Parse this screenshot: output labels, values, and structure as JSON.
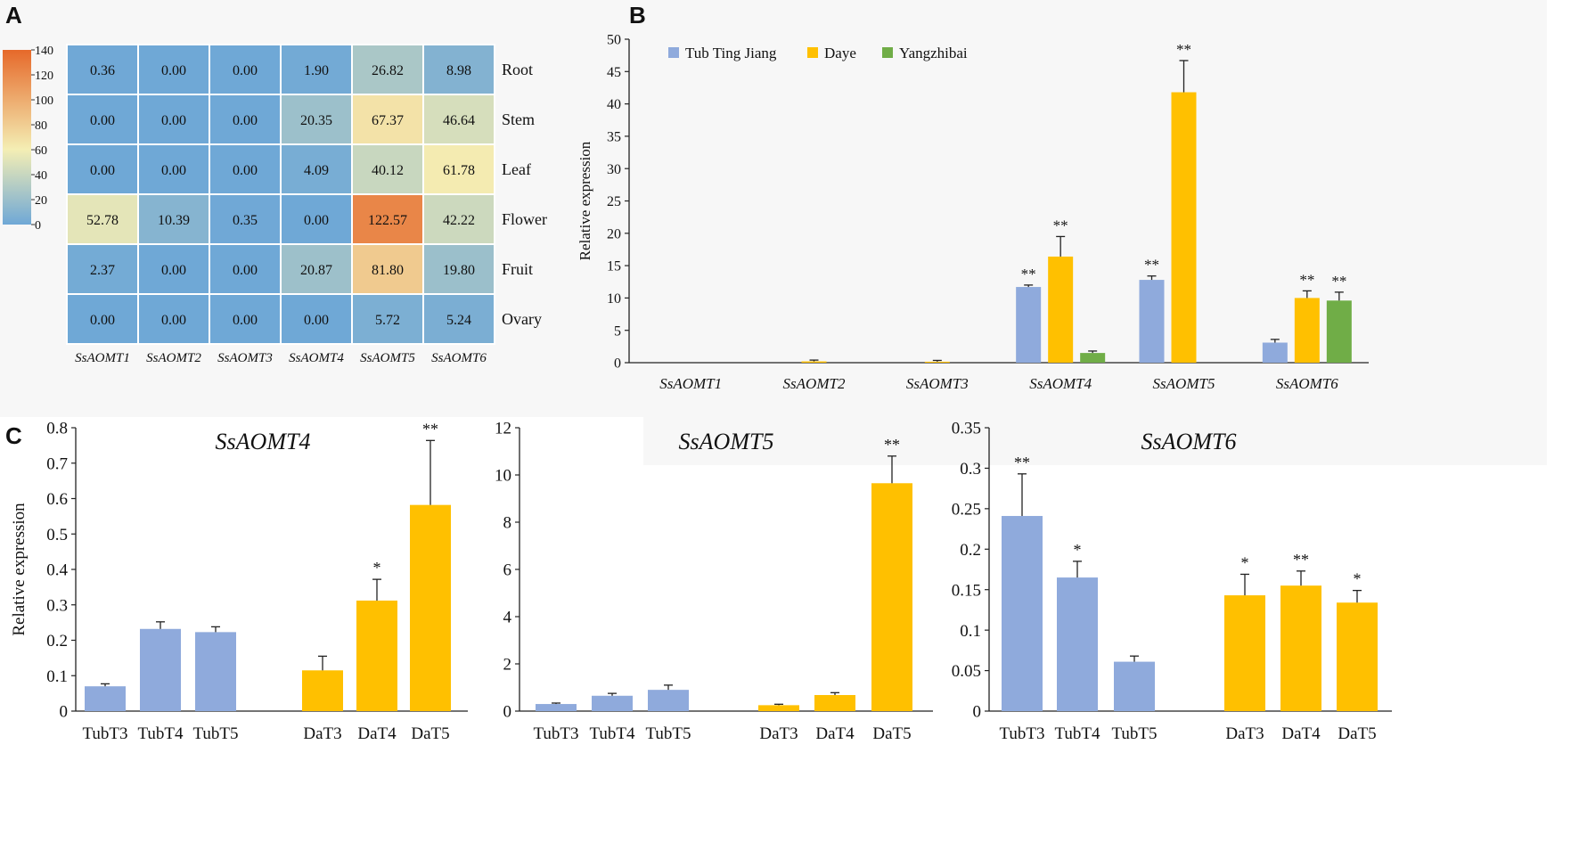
{
  "panel_labels": [
    "A",
    "B",
    "C"
  ],
  "colors": {
    "heat_low": "#6fa8d6",
    "heat_mid": "#f4eeb4",
    "heat_high": "#e6692a",
    "tub": "#8faadc",
    "daye": "#ffc000",
    "yangzhibai": "#70ad47"
  },
  "chart_data": [
    {
      "type": "heatmap",
      "title": "",
      "rows": [
        "Root",
        "Stem",
        "Leaf",
        "Flower",
        "Fruit",
        "Ovary"
      ],
      "columns": [
        "SsAOMT1",
        "SsAOMT2",
        "SsAOMT3",
        "SsAOMT4",
        "SsAOMT5",
        "SsAOMT6"
      ],
      "values": [
        [
          0.36,
          0.0,
          0.0,
          1.9,
          26.82,
          8.98
        ],
        [
          0.0,
          0.0,
          0.0,
          20.35,
          67.37,
          46.64
        ],
        [
          0.0,
          0.0,
          0.0,
          4.09,
          40.12,
          61.78
        ],
        [
          52.78,
          10.39,
          0.35,
          0.0,
          122.57,
          42.22
        ],
        [
          2.37,
          0.0,
          0.0,
          20.87,
          81.8,
          19.8
        ],
        [
          0.0,
          0.0,
          0.0,
          0.0,
          5.72,
          5.24
        ]
      ],
      "value_labels": [
        [
          "0.36",
          "0.00",
          "0.00",
          "1.90",
          "26.82",
          "8.98"
        ],
        [
          "0.00",
          "0.00",
          "0.00",
          "20.35",
          "67.37",
          "46.64"
        ],
        [
          "0.00",
          "0.00",
          "0.00",
          "4.09",
          "40.12",
          "61.78"
        ],
        [
          "52.78",
          "10.39",
          "0.35",
          "0.00",
          "122.57",
          "42.22"
        ],
        [
          "2.37",
          "0.00",
          "0.00",
          "20.87",
          "81.80",
          "19.80"
        ],
        [
          "0.00",
          "0.00",
          "0.00",
          "0.00",
          "5.72",
          "5.24"
        ]
      ],
      "colorbar": {
        "range": [
          0,
          140
        ],
        "ticks": [
          "0",
          "20",
          "40",
          "60",
          "80",
          "100",
          "120",
          "140"
        ]
      }
    },
    {
      "type": "bar",
      "title": "",
      "categories": [
        "SsAOMT1",
        "SsAOMT2",
        "SsAOMT3",
        "SsAOMT4",
        "SsAOMT5",
        "SsAOMT6"
      ],
      "series": [
        {
          "name": "Tub Ting Jiang",
          "values": [
            0.0,
            0.0,
            0.0,
            11.7,
            12.8,
            3.1
          ],
          "errors": [
            0,
            0,
            0,
            0.3,
            0.6,
            0.5
          ],
          "sig": [
            "",
            "",
            "",
            "**",
            "**",
            ""
          ]
        },
        {
          "name": "Daye",
          "values": [
            0.0,
            0.2,
            0.15,
            16.4,
            41.8,
            10.0
          ],
          "errors": [
            0,
            0.2,
            0.2,
            3.1,
            4.9,
            1.1
          ],
          "sig": [
            "",
            "",
            "",
            "**",
            "**",
            "**"
          ]
        },
        {
          "name": "Yangzhibai",
          "values": [
            0.0,
            0.0,
            0.0,
            1.5,
            0.0,
            9.6
          ],
          "errors": [
            0,
            0,
            0,
            0.3,
            0,
            1.3
          ],
          "sig": [
            "",
            "",
            "",
            "",
            "",
            "**"
          ]
        }
      ],
      "xlabel": "",
      "ylabel": "Relative expression",
      "ylim": [
        0,
        50
      ],
      "yticks": [
        "0",
        "5",
        "10",
        "15",
        "20",
        "25",
        "30",
        "35",
        "40",
        "45",
        "50"
      ],
      "legend": "top-left"
    },
    {
      "type": "bar",
      "title": "SsAOMT4",
      "categories": [
        "TubT3",
        "TubT4",
        "TubT5",
        "DaT3",
        "DaT4",
        "DaT5"
      ],
      "values": [
        0.07,
        0.232,
        0.223,
        0.115,
        0.312,
        0.582
      ],
      "errors": [
        0.007,
        0.02,
        0.015,
        0.04,
        0.06,
        0.182
      ],
      "sig": [
        "",
        "",
        "",
        "",
        "*",
        "**"
      ],
      "groups": [
        "tub",
        "tub",
        "tub",
        "daye",
        "daye",
        "daye"
      ],
      "xlabel": "",
      "ylabel": "Relative expression",
      "ylim": [
        0,
        0.8
      ],
      "yticks": [
        "0",
        "0.1",
        "0.2",
        "0.3",
        "0.4",
        "0.5",
        "0.6",
        "0.7",
        "0.8"
      ]
    },
    {
      "type": "bar",
      "title": "SsAOMT5",
      "categories": [
        "TubT3",
        "TubT4",
        "TubT5",
        "DaT3",
        "DaT4",
        "DaT5"
      ],
      "values": [
        0.3,
        0.65,
        0.9,
        0.25,
        0.68,
        9.65
      ],
      "errors": [
        0.04,
        0.1,
        0.2,
        0.04,
        0.1,
        1.15
      ],
      "sig": [
        "",
        "",
        "",
        "",
        "",
        "**"
      ],
      "groups": [
        "tub",
        "tub",
        "tub",
        "daye",
        "daye",
        "daye"
      ],
      "xlabel": "",
      "ylabel": "",
      "ylim": [
        0,
        12
      ],
      "yticks": [
        "0",
        "2",
        "4",
        "6",
        "8",
        "10",
        "12"
      ]
    },
    {
      "type": "bar",
      "title": "SsAOMT6",
      "categories": [
        "TubT3",
        "TubT4",
        "TubT5",
        "DaT3",
        "DaT4",
        "DaT5"
      ],
      "values": [
        0.241,
        0.165,
        0.061,
        0.143,
        0.155,
        0.134
      ],
      "errors": [
        0.052,
        0.02,
        0.007,
        0.026,
        0.018,
        0.015
      ],
      "sig": [
        "**",
        "*",
        "",
        "*",
        "**",
        "*"
      ],
      "groups": [
        "tub",
        "tub",
        "tub",
        "daye",
        "daye",
        "daye"
      ],
      "xlabel": "",
      "ylabel": "",
      "ylim": [
        0,
        0.35
      ],
      "yticks": [
        "0",
        "0.05",
        "0.1",
        "0.15",
        "0.2",
        "0.25",
        "0.3",
        "0.35"
      ]
    }
  ]
}
